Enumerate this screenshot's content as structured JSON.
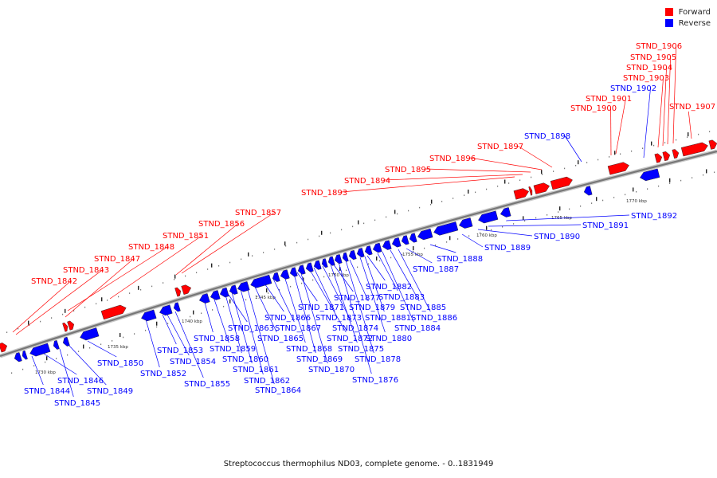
{
  "caption": "Streptococcus thermophilus ND03, complete genome. - 0..1831949",
  "legend": [
    {
      "label": "Forward",
      "color": "#ff0000"
    },
    {
      "label": "Reverse",
      "color": "#0000ff"
    }
  ],
  "colors": {
    "forward": "#ff0000",
    "reverse": "#0000ff",
    "backbone": "#777777"
  },
  "tick_labels": [
    "1730 kbp",
    "1735 kbp",
    "1740 kbp",
    "1745 kbp",
    "1750 kbp",
    "1755 kbp",
    "1760 kbp",
    "1765 kbp",
    "1770 kbp"
  ],
  "genes": {
    "forward": [
      "STND_1842",
      "STND_1843",
      "STND_1847",
      "STND_1848",
      "STND_1851",
      "STND_1856",
      "STND_1857",
      "STND_1893",
      "STND_1894",
      "STND_1895",
      "STND_1896",
      "STND_1897",
      "STND_1900",
      "STND_1901",
      "STND_1903",
      "STND_1904",
      "STND_1905",
      "STND_1906",
      "STND_1907"
    ],
    "reverse": [
      "STND_1844",
      "STND_1845",
      "STND_1846",
      "STND_1849",
      "STND_1850",
      "STND_1852",
      "STND_1853",
      "STND_1854",
      "STND_1855",
      "STND_1858",
      "STND_1859",
      "STND_1860",
      "STND_1861",
      "STND_1862",
      "STND_1863",
      "STND_1864",
      "STND_1865",
      "STND_1866",
      "STND_1867",
      "STND_1868",
      "STND_1869",
      "STND_1870",
      "STND_1871",
      "STND_1872",
      "STND_1873",
      "STND_1874",
      "STND_1875",
      "STND_1876",
      "STND_1877",
      "STND_1878",
      "STND_1879",
      "STND_1880",
      "STND_1881",
      "STND_1882",
      "STND_1883",
      "STND_1884",
      "STND_1885",
      "STND_1886",
      "STND_1887",
      "STND_1888",
      "STND_1889",
      "STND_1890",
      "STND_1891",
      "STND_1892",
      "STND_1898",
      "STND_1902"
    ]
  }
}
